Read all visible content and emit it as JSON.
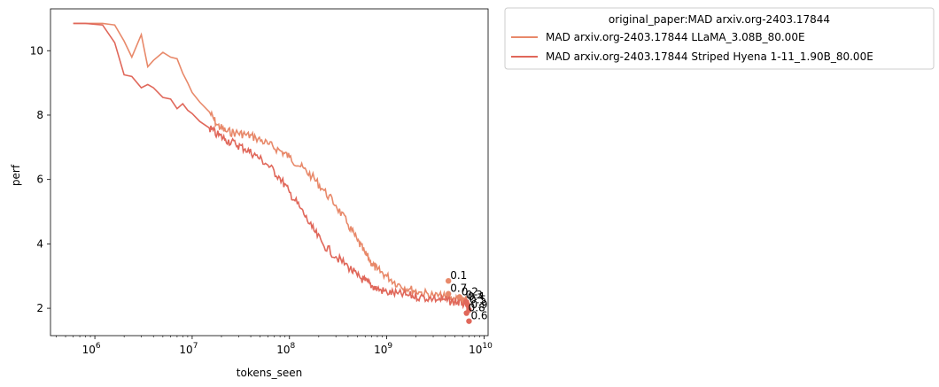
{
  "chart_data": {
    "type": "line",
    "title": "",
    "xlabel": "tokens_seen",
    "ylabel": "perf",
    "x_scale": "log",
    "xlim": [
      350000,
      11000000000
    ],
    "ylim": [
      1.15,
      11.3
    ],
    "x_ticks": [
      {
        "value": 1000000,
        "base": "10",
        "exp": "6"
      },
      {
        "value": 10000000,
        "base": "10",
        "exp": "7"
      },
      {
        "value": 100000000,
        "base": "10",
        "exp": "8"
      },
      {
        "value": 1000000000,
        "base": "10",
        "exp": "9"
      },
      {
        "value": 10000000000,
        "base": "10",
        "exp": "10"
      }
    ],
    "y_ticks": [
      "2",
      "4",
      "6",
      "8",
      "10"
    ],
    "grid": false,
    "legend": {
      "title": "original_paper:MAD arxiv.org-2403.17844",
      "placement": "outside-upper-right"
    },
    "series": [
      {
        "name": "MAD arxiv.org-2403.17844 LLaMA_3.08B_80.00E",
        "color": "#e8896a",
        "x": [
          600000,
          800000,
          1200000,
          1600000,
          2000000,
          2400000,
          3000000,
          3500000,
          4000000,
          5000000,
          6000000,
          7000000,
          8000000,
          9000000,
          10000000,
          12000000,
          15000000,
          18000000,
          22000000,
          28000000,
          35000000,
          45000000,
          60000000,
          80000000,
          100000000,
          130000000,
          170000000,
          220000000,
          300000000,
          400000000,
          500000000,
          600000000,
          700000000,
          800000000,
          1000000000,
          1300000000,
          1700000000,
          2200000000,
          3000000000,
          4000000000,
          5000000000,
          6000000000,
          7000000000
        ],
        "y": [
          10.85,
          10.85,
          10.85,
          10.8,
          10.3,
          9.8,
          10.5,
          9.5,
          9.7,
          9.95,
          9.8,
          9.75,
          9.3,
          9.0,
          8.7,
          8.4,
          8.1,
          7.7,
          7.5,
          7.45,
          7.4,
          7.3,
          7.1,
          6.9,
          6.7,
          6.4,
          6.1,
          5.7,
          5.2,
          4.6,
          4.1,
          3.7,
          3.4,
          3.2,
          3.0,
          2.75,
          2.6,
          2.5,
          2.4,
          2.35,
          2.3,
          2.25,
          2.2
        ]
      },
      {
        "name": "MAD arxiv.org-2403.17844 Striped Hyena 1-11_1.90B_80.00E",
        "color": "#e0675a",
        "x": [
          600000,
          800000,
          1200000,
          1600000,
          2000000,
          2400000,
          3000000,
          3500000,
          4000000,
          5000000,
          6000000,
          7000000,
          8000000,
          9000000,
          10000000,
          12000000,
          15000000,
          18000000,
          22000000,
          28000000,
          35000000,
          45000000,
          60000000,
          80000000,
          100000000,
          130000000,
          170000000,
          220000000,
          300000000,
          400000000,
          500000000,
          600000000,
          700000000,
          800000000,
          1000000000,
          1300000000,
          1700000000,
          2200000000,
          3000000000,
          4000000000,
          5000000000,
          6000000000,
          7000000000
        ],
        "y": [
          10.85,
          10.85,
          10.8,
          10.25,
          9.25,
          9.2,
          8.85,
          8.95,
          8.85,
          8.55,
          8.5,
          8.2,
          8.35,
          8.15,
          8.05,
          7.8,
          7.6,
          7.4,
          7.25,
          7.1,
          6.95,
          6.75,
          6.45,
          6.05,
          5.6,
          5.1,
          4.5,
          4.0,
          3.6,
          3.3,
          3.0,
          2.85,
          2.7,
          2.6,
          2.5,
          2.45,
          2.4,
          2.35,
          2.3,
          2.25,
          2.2,
          2.15,
          2.1
        ]
      }
    ],
    "annotations": [
      {
        "text": "0.1",
        "x": 4300000000,
        "y": 2.85,
        "color": "#e8896a"
      },
      {
        "text": "0.7",
        "x": 4300000000,
        "y": 2.45,
        "color": "#e8896a"
      },
      {
        "text": "0.2",
        "x": 5600000000,
        "y": 2.35,
        "color": "#e8896a"
      },
      {
        "text": "0.3",
        "x": 6200000000,
        "y": 2.25,
        "color": "#e8896a"
      },
      {
        "text": "0.4",
        "x": 6500000000,
        "y": 2.2,
        "color": "#e0675a"
      },
      {
        "text": "0.5",
        "x": 6800000000,
        "y": 2.1,
        "color": "#e0675a"
      },
      {
        "text": "0.9",
        "x": 7000000000,
        "y": 1.95,
        "color": "#e0675a"
      },
      {
        "text": "0.8",
        "x": 6600000000,
        "y": 1.85,
        "color": "#e0675a"
      },
      {
        "text": "0.6",
        "x": 7000000000,
        "y": 1.6,
        "color": "#e0675a"
      }
    ]
  }
}
